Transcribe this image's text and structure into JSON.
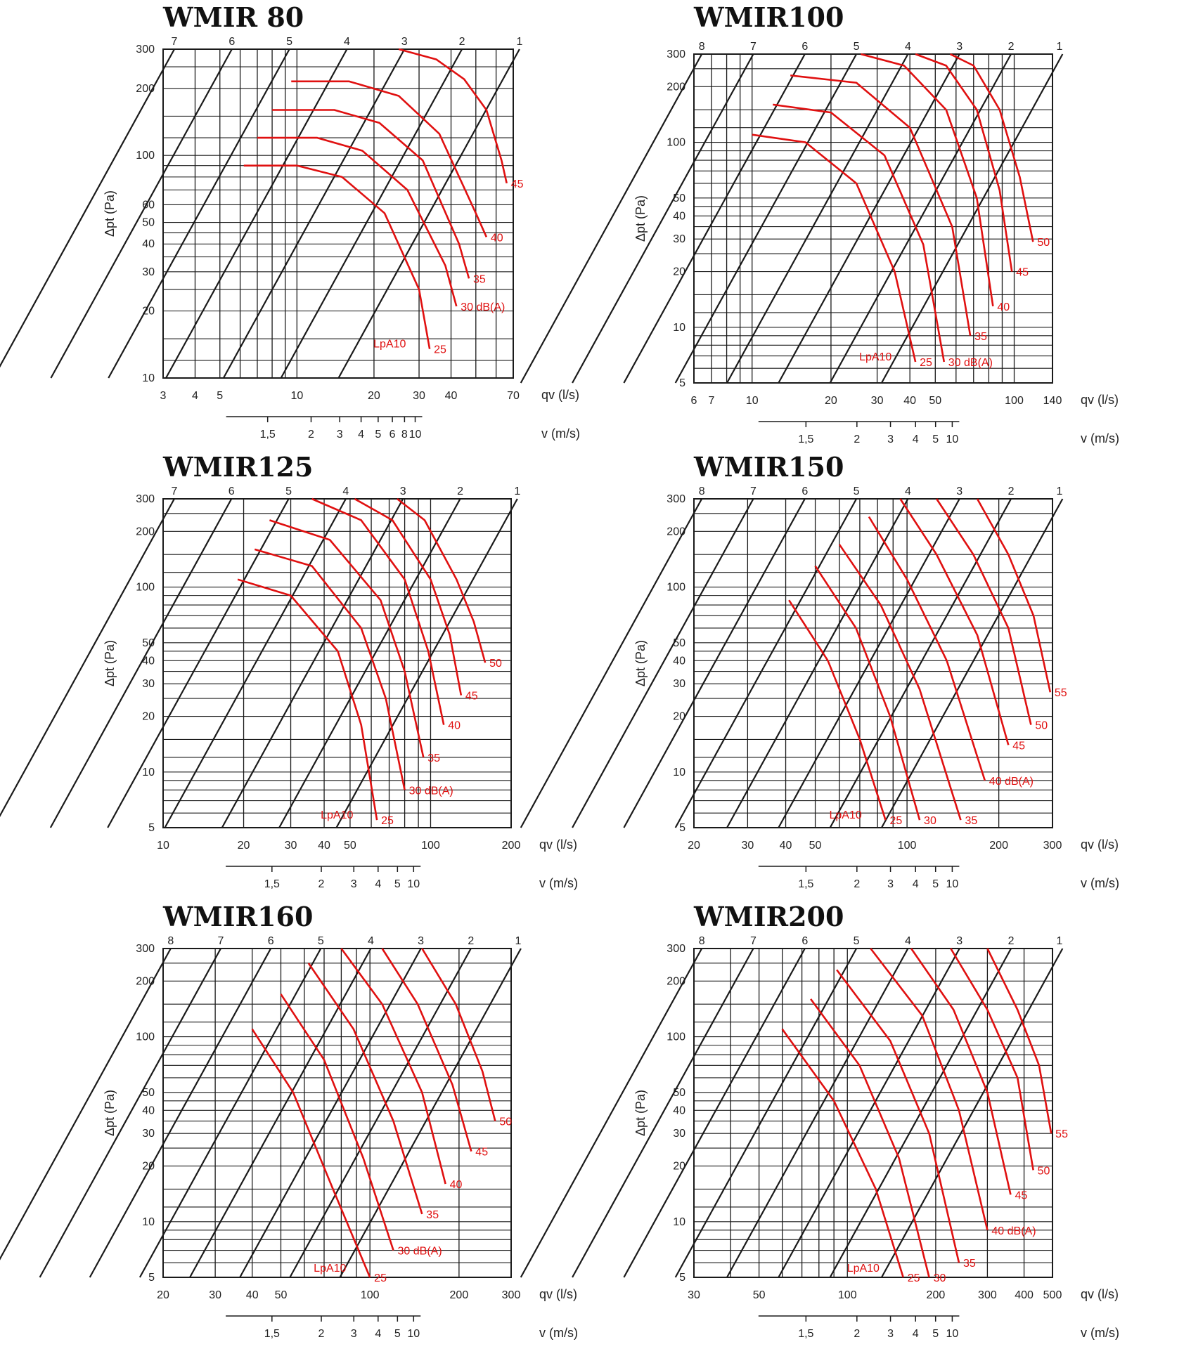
{
  "page": {
    "background": "#ffffff"
  },
  "colors": {
    "grid": "#1a1a1a",
    "diameter_lines": "#1a1a1a",
    "noise_curves": "#e01010",
    "labels": "#222222"
  },
  "chart_data": [
    {
      "type": "line",
      "title": "WMIR 80",
      "xlabel": "qv (l/s)",
      "ylabel": "Δpt (Pa)",
      "x_scale": "log",
      "y_scale": "log",
      "xlim": [
        3,
        70
      ],
      "ylim": [
        10,
        300
      ],
      "x_ticks": [
        3,
        4,
        5,
        10,
        20,
        30,
        40,
        70
      ],
      "y_ticks": [
        10,
        20,
        30,
        40,
        50,
        60,
        100,
        200,
        300
      ],
      "velocity_axis": {
        "label": "v (m/s)",
        "ticks": [
          "1,5",
          "2",
          "3",
          "4",
          "5",
          "6",
          "8",
          "10"
        ]
      },
      "diameter_lines": [
        "7",
        "6",
        "5",
        "4",
        "3",
        "2",
        "1"
      ],
      "noise_label": "LpA10",
      "series": [
        {
          "name": "25",
          "x": [
            6.2,
            10,
            15,
            22,
            30,
            33
          ],
          "y": [
            90,
            90,
            80,
            55,
            25,
            13.5
          ]
        },
        {
          "name": "30 dB(A)",
          "x": [
            7,
            12,
            18,
            27,
            38,
            42
          ],
          "y": [
            120,
            120,
            105,
            70,
            32,
            21
          ]
        },
        {
          "name": "35",
          "x": [
            8,
            14,
            21,
            31,
            43,
            47
          ],
          "y": [
            160,
            160,
            140,
            95,
            40,
            28
          ]
        },
        {
          "name": "40",
          "x": [
            9.5,
            16,
            25,
            36,
            50,
            55
          ],
          "y": [
            215,
            215,
            185,
            125,
            55,
            43
          ]
        },
        {
          "name": "45",
          "x": [
            25,
            35,
            45,
            55,
            63,
            66
          ],
          "y": [
            300,
            270,
            220,
            160,
            95,
            75
          ]
        }
      ]
    },
    {
      "type": "line",
      "title": "WMIR100",
      "xlabel": "qv (l/s)",
      "ylabel": "Δpt (Pa)",
      "x_scale": "log",
      "y_scale": "log",
      "xlim": [
        6,
        140
      ],
      "ylim": [
        5,
        300
      ],
      "x_ticks": [
        6,
        7,
        10,
        20,
        30,
        40,
        50,
        100,
        140
      ],
      "y_ticks": [
        5,
        10,
        20,
        30,
        40,
        50,
        100,
        200,
        300
      ],
      "velocity_axis": {
        "label": "v (m/s)",
        "ticks": [
          "1,5",
          "2",
          "3",
          "4",
          "5",
          "10"
        ]
      },
      "diameter_lines": [
        "8",
        "7",
        "6",
        "5",
        "4",
        "3",
        "2",
        "1"
      ],
      "noise_label": "LpA10",
      "series": [
        {
          "name": "25",
          "x": [
            10,
            16,
            25,
            35,
            42
          ],
          "y": [
            110,
            100,
            60,
            20,
            6.5
          ]
        },
        {
          "name": "30 dB(A)",
          "x": [
            12,
            20,
            32,
            45,
            54
          ],
          "y": [
            160,
            145,
            85,
            28,
            6.5
          ]
        },
        {
          "name": "35",
          "x": [
            14,
            25,
            40,
            58,
            68
          ],
          "y": [
            230,
            210,
            120,
            35,
            9
          ]
        },
        {
          "name": "40",
          "x": [
            26,
            38,
            55,
            72,
            83
          ],
          "y": [
            300,
            260,
            150,
            50,
            13
          ]
        },
        {
          "name": "45",
          "x": [
            42,
            55,
            72,
            88,
            98
          ],
          "y": [
            300,
            260,
            150,
            55,
            20
          ]
        },
        {
          "name": "50",
          "x": [
            57,
            70,
            88,
            105,
            118
          ],
          "y": [
            300,
            260,
            150,
            65,
            29
          ]
        }
      ]
    },
    {
      "type": "line",
      "title": "WMIR125",
      "xlabel": "qv (l/s)",
      "ylabel": "Δpt (Pa)",
      "x_scale": "log",
      "y_scale": "log",
      "xlim": [
        10,
        200
      ],
      "ylim": [
        5,
        300
      ],
      "x_ticks": [
        10,
        20,
        30,
        40,
        50,
        100,
        200
      ],
      "y_ticks": [
        5,
        10,
        20,
        30,
        40,
        50,
        100,
        200,
        300
      ],
      "velocity_axis": {
        "label": "v (m/s)",
        "ticks": [
          "1,5",
          "2",
          "3",
          "4",
          "5",
          "10"
        ]
      },
      "diameter_lines": [
        "7",
        "6",
        "5",
        "4",
        "3",
        "2",
        "1"
      ],
      "noise_label": "LpA10",
      "series": [
        {
          "name": "25",
          "x": [
            19,
            30,
            45,
            55,
            63
          ],
          "y": [
            110,
            90,
            45,
            18,
            5.5
          ]
        },
        {
          "name": "30 dB(A)",
          "x": [
            22,
            36,
            55,
            68,
            80
          ],
          "y": [
            160,
            130,
            60,
            25,
            8
          ]
        },
        {
          "name": "35",
          "x": [
            25,
            42,
            65,
            80,
            94
          ],
          "y": [
            230,
            180,
            85,
            35,
            12
          ]
        },
        {
          "name": "40",
          "x": [
            36,
            55,
            80,
            98,
            112
          ],
          "y": [
            300,
            230,
            110,
            45,
            18
          ]
        },
        {
          "name": "45",
          "x": [
            52,
            72,
            100,
            118,
            130
          ],
          "y": [
            300,
            230,
            110,
            55,
            26
          ]
        },
        {
          "name": "50",
          "x": [
            75,
            95,
            125,
            145,
            160
          ],
          "y": [
            300,
            230,
            110,
            65,
            39
          ]
        }
      ]
    },
    {
      "type": "line",
      "title": "WMIR150",
      "xlabel": "qv (l/s)",
      "ylabel": "Δpt (Pa)",
      "x_scale": "log",
      "y_scale": "log",
      "xlim": [
        20,
        300
      ],
      "ylim": [
        5,
        300
      ],
      "x_ticks": [
        20,
        30,
        40,
        50,
        100,
        200,
        300
      ],
      "y_ticks": [
        5,
        10,
        20,
        30,
        40,
        50,
        100,
        200,
        300
      ],
      "velocity_axis": {
        "label": "v (m/s)",
        "ticks": [
          "1,5",
          "2",
          "3",
          "4",
          "5",
          "10"
        ]
      },
      "diameter_lines": [
        "8",
        "7",
        "6",
        "5",
        "4",
        "3",
        "2",
        "1"
      ],
      "noise_label": "LpA10",
      "series": [
        {
          "name": "25",
          "x": [
            41,
            55,
            70,
            85
          ],
          "y": [
            85,
            40,
            15,
            5.5
          ]
        },
        {
          "name": "30",
          "x": [
            50,
            68,
            88,
            110
          ],
          "y": [
            130,
            60,
            20,
            5.5
          ]
        },
        {
          "name": "35",
          "x": [
            60,
            82,
            110,
            150
          ],
          "y": [
            170,
            80,
            28,
            5.5
          ]
        },
        {
          "name": "40 dB(A)",
          "x": [
            75,
            100,
            135,
            180
          ],
          "y": [
            240,
            110,
            40,
            9
          ]
        },
        {
          "name": "45",
          "x": [
            95,
            125,
            170,
            215
          ],
          "y": [
            300,
            150,
            55,
            14
          ]
        },
        {
          "name": "50",
          "x": [
            125,
            165,
            215,
            255
          ],
          "y": [
            300,
            150,
            60,
            18
          ]
        },
        {
          "name": "55",
          "x": [
            170,
            215,
            260,
            295
          ],
          "y": [
            300,
            150,
            70,
            27
          ]
        }
      ]
    },
    {
      "type": "line",
      "title": "WMIR160",
      "xlabel": "qv (l/s)",
      "ylabel": "Δpt (Pa)",
      "x_scale": "log",
      "y_scale": "log",
      "xlim": [
        20,
        300
      ],
      "ylim": [
        5,
        300
      ],
      "x_ticks": [
        20,
        30,
        40,
        50,
        100,
        200,
        300
      ],
      "y_ticks": [
        5,
        10,
        20,
        30,
        40,
        50,
        100,
        200,
        300
      ],
      "velocity_axis": {
        "label": "v (m/s)",
        "ticks": [
          "1,5",
          "2",
          "3",
          "4",
          "5",
          "10"
        ]
      },
      "diameter_lines": [
        "8",
        "7",
        "6",
        "5",
        "4",
        "3",
        "2",
        "1"
      ],
      "noise_label": "LpA10",
      "series": [
        {
          "name": "25",
          "x": [
            40,
            55,
            75,
            100
          ],
          "y": [
            110,
            50,
            15,
            5
          ]
        },
        {
          "name": "30 dB(A)",
          "x": [
            50,
            70,
            95,
            120
          ],
          "y": [
            170,
            75,
            22,
            7
          ]
        },
        {
          "name": "35",
          "x": [
            62,
            88,
            120,
            150
          ],
          "y": [
            250,
            110,
            35,
            11
          ]
        },
        {
          "name": "40",
          "x": [
            80,
            110,
            150,
            180
          ],
          "y": [
            300,
            150,
            50,
            16
          ]
        },
        {
          "name": "45",
          "x": [
            110,
            145,
            190,
            220
          ],
          "y": [
            300,
            150,
            55,
            24
          ]
        },
        {
          "name": "50",
          "x": [
            150,
            195,
            240,
            265
          ],
          "y": [
            300,
            150,
            65,
            35
          ]
        }
      ]
    },
    {
      "type": "line",
      "title": "WMIR200",
      "xlabel": "qv (l/s)",
      "ylabel": "Δpt (Pa)",
      "x_scale": "log",
      "y_scale": "log",
      "xlim": [
        30,
        500
      ],
      "ylim": [
        5,
        300
      ],
      "x_ticks": [
        30,
        50,
        100,
        200,
        300,
        400,
        500
      ],
      "y_ticks": [
        5,
        10,
        20,
        30,
        40,
        50,
        100,
        200,
        300
      ],
      "velocity_axis": {
        "label": "v (m/s)",
        "ticks": [
          "1,5",
          "2",
          "3",
          "4",
          "5",
          "10"
        ]
      },
      "diameter_lines": [
        "8",
        "7",
        "6",
        "5",
        "4",
        "3",
        "2",
        "1"
      ],
      "noise_label": "LpA10",
      "series": [
        {
          "name": "25",
          "x": [
            60,
            90,
            125,
            155
          ],
          "y": [
            110,
            45,
            15,
            5
          ]
        },
        {
          "name": "30",
          "x": [
            75,
            110,
            150,
            190
          ],
          "y": [
            160,
            70,
            22,
            5
          ]
        },
        {
          "name": "35",
          "x": [
            92,
            140,
            190,
            240
          ],
          "y": [
            230,
            95,
            30,
            6
          ]
        },
        {
          "name": "40 dB(A)",
          "x": [
            120,
            180,
            240,
            300
          ],
          "y": [
            300,
            130,
            40,
            9
          ]
        },
        {
          "name": "45",
          "x": [
            165,
            230,
            300,
            360
          ],
          "y": [
            300,
            140,
            50,
            14
          ]
        },
        {
          "name": "50",
          "x": [
            225,
            300,
            380,
            430
          ],
          "y": [
            300,
            140,
            60,
            19
          ]
        },
        {
          "name": "55",
          "x": [
            300,
            380,
            450,
            495
          ],
          "y": [
            300,
            140,
            70,
            30
          ]
        }
      ]
    }
  ]
}
